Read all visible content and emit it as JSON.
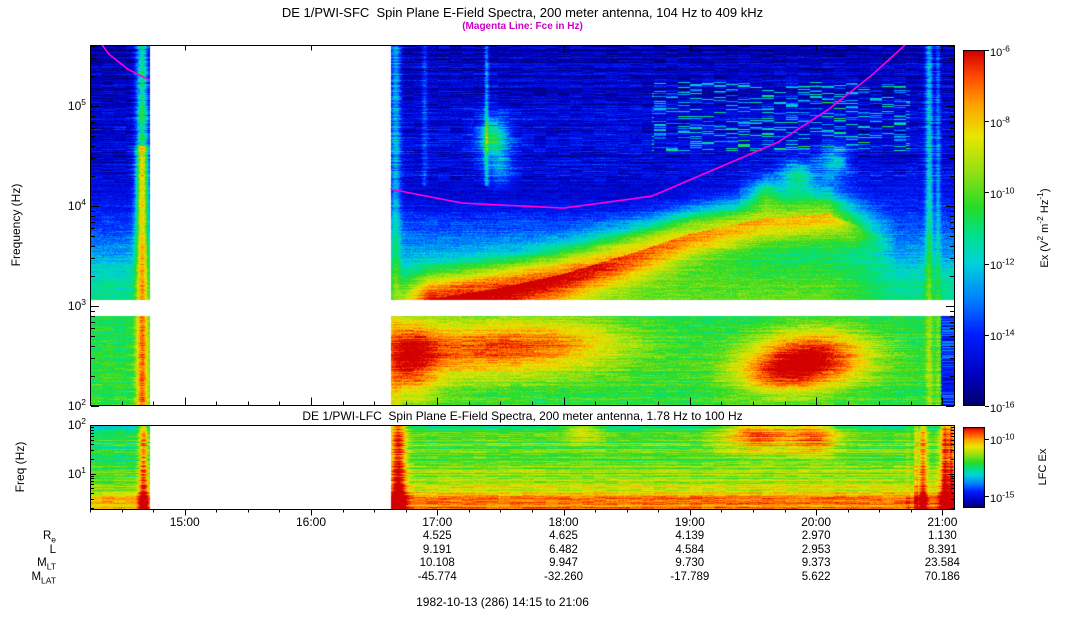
{
  "footer": "1982-10-13 (286) 14:15 to 21:06",
  "ephemeris": {
    "column_hours": [
      17,
      18,
      19,
      20,
      21
    ],
    "rows": [
      {
        "base": "R",
        "sub": "e",
        "values": [
          "4.525",
          "4.625",
          "4.139",
          "2.970",
          "1.130"
        ]
      },
      {
        "base": "L",
        "sub": "",
        "values": [
          "9.191",
          "6.482",
          "4.584",
          "2.953",
          "8.391"
        ]
      },
      {
        "base": "M",
        "sub": "LT",
        "values": [
          "10.108",
          "9.947",
          "9.730",
          "9.373",
          "23.584"
        ]
      },
      {
        "base": "M",
        "sub": "LAT",
        "values": [
          "-45.774",
          "-32.260",
          "-17.789",
          "5.622",
          "70.186"
        ]
      }
    ]
  },
  "chart_data": [
    {
      "type": "heatmap",
      "instrument": "SFC",
      "title": "DE 1/PWI-SFC  Spin Plane E-Field Spectra, 200 meter antenna, 104 Hz to 409 kHz",
      "subtitle": "(Magenta Line: Fce in Hz)",
      "subtitle_color": "#cc00cc",
      "ylabel": "Frequency (Hz)",
      "x_start_hour": 14.25,
      "x_end_hour": 21.1,
      "x_ticks": [
        {
          "hour": 15,
          "label": "15:00"
        },
        {
          "hour": 16,
          "label": "16:00"
        },
        {
          "hour": 17,
          "label": "17:00"
        },
        {
          "hour": 18,
          "label": "18:00"
        },
        {
          "hour": 19,
          "label": "19:00"
        },
        {
          "hour": 20,
          "label": "20:00"
        },
        {
          "hour": 21,
          "label": "21:00"
        }
      ],
      "y_log10_range": [
        2,
        5.612
      ],
      "y_tick_exps": [
        2,
        3,
        4,
        5
      ],
      "colorbar": {
        "label_tokens": [
          "Ex (V",
          "2",
          " m",
          "-2",
          " Hz",
          "-1",
          ")"
        ],
        "tick_exps": [
          -6,
          -8,
          -10,
          -12,
          -14,
          -16
        ],
        "log10_range": [
          -16,
          -6
        ]
      },
      "data_gap_hours": [
        14.72,
        16.63
      ],
      "white_band_log10": [
        2.9,
        3.06
      ],
      "fce_color": "#ff00dd",
      "fce_segments": [
        [
          [
            14.25,
            5.78
          ],
          [
            14.4,
            5.52
          ],
          [
            14.55,
            5.37
          ],
          [
            14.72,
            5.26
          ]
        ],
        [
          [
            16.63,
            4.17
          ],
          [
            17.2,
            4.03
          ],
          [
            18.0,
            3.98
          ],
          [
            18.7,
            4.1
          ],
          [
            19.2,
            4.37
          ],
          [
            19.7,
            4.64
          ],
          [
            20.1,
            4.97
          ],
          [
            20.45,
            5.32
          ],
          [
            20.78,
            5.7
          ]
        ]
      ],
      "features": {
        "hiss_ridge": [
          [
            16.63,
            3.0
          ],
          [
            17.5,
            3.18
          ],
          [
            18.0,
            3.32
          ],
          [
            18.6,
            3.55
          ],
          [
            19.0,
            3.72
          ],
          [
            19.6,
            3.88
          ],
          [
            20.1,
            3.92
          ],
          [
            20.5,
            3.72
          ]
        ],
        "ridge_span": [
          16.63,
          20.65
        ],
        "lower_blobs": [
          {
            "t": 17.1,
            "lf": 2.55,
            "st": 0.5,
            "sf": 0.22,
            "a": 0.26
          },
          {
            "t": 17.9,
            "lf": 2.62,
            "st": 0.5,
            "sf": 0.2,
            "a": 0.28
          },
          {
            "t": 16.75,
            "lf": 2.45,
            "st": 0.18,
            "sf": 0.3,
            "a": 0.3
          },
          {
            "t": 20.0,
            "lf": 2.5,
            "st": 0.33,
            "sf": 0.2,
            "a": 0.42
          },
          {
            "t": 19.7,
            "lf": 2.32,
            "st": 0.28,
            "sf": 0.16,
            "a": 0.26
          }
        ],
        "hf_blobs": [
          {
            "t": 17.45,
            "lf": 4.68,
            "st": 0.09,
            "sf": 0.16,
            "a": 0.36
          },
          {
            "t": 17.5,
            "lf": 4.35,
            "st": 0.07,
            "sf": 0.12,
            "a": 0.16
          },
          {
            "t": 19.85,
            "lf": 4.3,
            "st": 0.1,
            "sf": 0.12,
            "a": 0.28
          },
          {
            "t": 20.15,
            "lf": 4.45,
            "st": 0.09,
            "sf": 0.12,
            "a": 0.26
          },
          {
            "t": 19.6,
            "lf": 4.15,
            "st": 0.08,
            "sf": 0.1,
            "a": 0.2
          }
        ],
        "bright_columns": [
          {
            "t": 14.66,
            "sigma": 0.035,
            "a": 0.85,
            "profile": "perigee"
          },
          {
            "t": 16.67,
            "sigma": 0.03,
            "a": 0.28
          },
          {
            "t": 20.9,
            "sigma": 0.022,
            "a": 0.33
          },
          {
            "t": 20.97,
            "sigma": 0.014,
            "a": 0.22
          }
        ],
        "hf_columns": [
          {
            "t": 17.39,
            "sigma": 0.012,
            "a": 0.22
          },
          {
            "t": 16.9,
            "sigma": 0.015,
            "a": 0.12
          }
        ],
        "speckle_box": {
          "t": [
            18.7,
            20.75
          ],
          "lf": [
            4.55,
            5.25
          ]
        }
      }
    },
    {
      "type": "heatmap",
      "instrument": "LFC",
      "title": "DE 1/PWI-LFC  Spin Plane E-Field Spectra, 200 meter antenna, 1.78 Hz to 100 Hz",
      "ylabel": "Freq (Hz)",
      "x_start_hour": 14.25,
      "x_end_hour": 21.1,
      "y_log10_range": [
        0.25,
        2
      ],
      "y_tick_exps": [
        1,
        2
      ],
      "colorbar": {
        "label": "LFC Ex",
        "tick_exps": [
          -10,
          -15
        ],
        "log10_range": [
          -16,
          -9
        ]
      },
      "data_gap_hours": [
        14.72,
        16.63
      ],
      "features": {
        "top_blobs": [
          {
            "t": 19.55,
            "lf": 1.85,
            "st": 0.2,
            "sf": 0.3,
            "a": 0.34
          },
          {
            "t": 20.0,
            "lf": 1.8,
            "st": 0.14,
            "sf": 0.3,
            "a": 0.3
          },
          {
            "t": 18.15,
            "lf": 1.92,
            "st": 0.1,
            "sf": 0.2,
            "a": 0.18
          }
        ],
        "red_columns": [
          {
            "t": 14.67,
            "sigma": 0.028,
            "a": 0.34
          },
          {
            "t": 16.69,
            "sigma": 0.045,
            "a": 0.38
          },
          {
            "t": 20.85,
            "sigma": 0.025,
            "a": 0.26
          },
          {
            "t": 21.04,
            "sigma": 0.04,
            "a": 0.32
          }
        ],
        "streaky_right_start": 20.7
      }
    }
  ]
}
